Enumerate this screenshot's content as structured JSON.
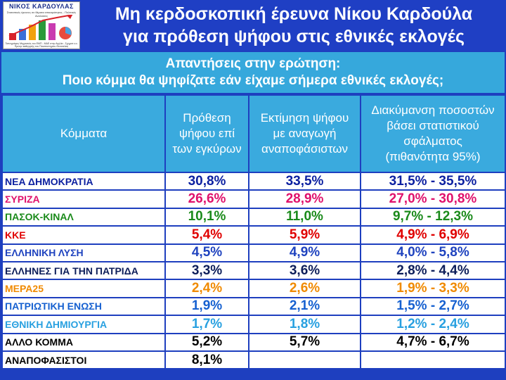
{
  "logo": {
    "name": "ΝΙΚΟΣ ΚΑΡΔΟΥΛΑΣ",
    "subtitle": "Στατιστικές έρευνες σε θέματα επικαιρότητας - Πολιτικές Αναλύσεις",
    "footer": "Τοπογράφος Μηχανικός του ΕΜΠ - ΜΔΕ στην Αγγλία - Σχηματ ε.α. Πρώην καθηγητής του Πανεπιστημίου Θεσσαλίας"
  },
  "title": {
    "line1": "Μη κερδοσκοπική έρευνα Νίκου Καρδούλα",
    "line2": "για πρόθεση ψήφου στις εθνικές εκλογές"
  },
  "question": {
    "line1": "Απαντήσεις στην ερώτηση:",
    "line2": "Ποιο κόμμα θα ψηφίζατε εάν είχαμε σήμερα εθνικές εκλογές;"
  },
  "table": {
    "headers": {
      "party": [
        "Κόμματα"
      ],
      "intent": [
        "Πρόθεση",
        "ψήφου επί",
        "των εγκύρων"
      ],
      "estimate": [
        "Εκτίμηση ψήφου",
        "με αναγωγή",
        "αναποφάσιστων"
      ],
      "range": [
        "Διακύμανση ποσοστών",
        "βάσει στατιστικού",
        "σφάλματος",
        "(πιθανότητα 95%)"
      ]
    },
    "rows": [
      {
        "party": "ΝΕΑ ΔΗΜΟΚΡΑΤΙΑ",
        "intent": "30,8%",
        "estimate": "33,5%",
        "range": "31,5% - 35,5%",
        "color": "#0b1fa0"
      },
      {
        "party": "ΣΥΡΙΖΑ",
        "intent": "26,6%",
        "estimate": "28,9%",
        "range": "27,0% - 30,8%",
        "color": "#e0116b"
      },
      {
        "party": "ΠΑΣΟΚ-ΚΙΝΑΛ",
        "intent": "10,1%",
        "estimate": "11,0%",
        "range": "9,7% - 12,3%",
        "color": "#1a8a1a"
      },
      {
        "party": "ΚΚΕ",
        "intent": "5,4%",
        "estimate": "5,9%",
        "range": "4,9% - 6,9%",
        "color": "#e00000"
      },
      {
        "party": "ΕΛΛΗΝΙΚΗ ΛΥΣΗ",
        "intent": "4,5%",
        "estimate": "4,9%",
        "range": "4,0% - 5,8%",
        "color": "#1f43bf"
      },
      {
        "party": "ΕΛΛΗΝΕΣ ΓΙΑ ΤΗΝ ΠΑΤΡΙΔΑ",
        "intent": "3,3%",
        "estimate": "3,6%",
        "range": "2,8% - 4,4%",
        "color": "#0d1e5a"
      },
      {
        "party": "ΜΕΡΑ25",
        "intent": "2,4%",
        "estimate": "2,6%",
        "range": "1,9% - 3,3%",
        "color": "#f08a00"
      },
      {
        "party": "ΠΑΤΡΙΩΤΙΚΗ ΕΝΩΣΗ",
        "intent": "1,9%",
        "estimate": "2,1%",
        "range": "1,5% - 2,7%",
        "color": "#1560d0"
      },
      {
        "party": "ΕΘΝΙΚΗ ΔΗΜΙΟΥΡΓΙΑ",
        "intent": "1,7%",
        "estimate": "1,8%",
        "range": "1,2% - 2,4%",
        "color": "#28a0e0"
      },
      {
        "party": "ΑΛΛΟ ΚΟΜΜΑ",
        "intent": "5,2%",
        "estimate": "5,7%",
        "range": "4,7% - 6,7%",
        "color": "#000000"
      },
      {
        "party": "ΑΝΑΠΟΦΑΣΙΣΤΟΙ",
        "intent": "8,1%",
        "estimate": "",
        "range": "",
        "color": "#000000"
      }
    ]
  },
  "colors": {
    "background": "#1e3fbf",
    "header_cell": "#3aaade",
    "question_bar": "#36a8dc"
  }
}
